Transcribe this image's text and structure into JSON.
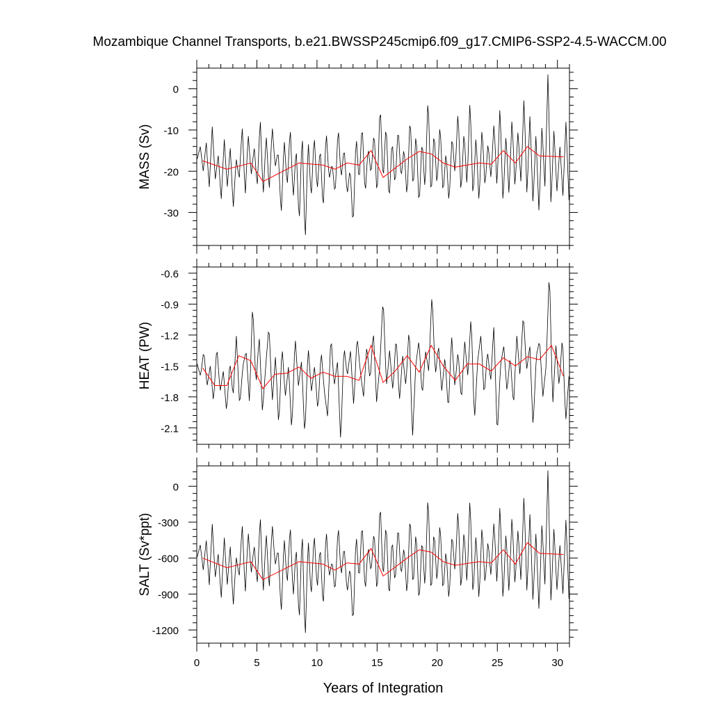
{
  "title": "Mozambique Channel Transports, b.e21.BWSSP245cmip6.f09_g17.CMIP6-SSP2-4.5-WACCM.00",
  "xlabel": "Years of Integration",
  "colors": {
    "monthly": "#000000",
    "annual": "#ff0000",
    "axes": "#000000"
  },
  "chart_data": [
    {
      "type": "line",
      "ylabel": "MASS (Sv)",
      "xlim": [
        0,
        31
      ],
      "ylim": [
        -38,
        5
      ],
      "xticks": [
        0,
        5,
        10,
        15,
        20,
        25,
        30
      ],
      "yticks": [
        0,
        -10,
        -20,
        -30
      ],
      "ytick_labels": [
        "0",
        "-10",
        "-20",
        "-30"
      ],
      "annual_x": [
        0.5,
        2.5,
        4.5,
        5.5,
        8.5,
        10.5,
        11.5,
        12.5,
        13.5,
        14.5,
        15.5,
        17.5,
        18.5,
        19.5,
        20.5,
        21.5,
        23.5,
        24.5,
        25.5,
        26.5,
        27.5,
        28.5,
        30.5
      ],
      "annual_y": [
        -17.5,
        -19.5,
        -18,
        -22.5,
        -18,
        -18.5,
        -19.5,
        -18,
        -18.5,
        -15,
        -21.5,
        -17,
        -15.2,
        -15.8,
        -18,
        -19,
        -18,
        -18.3,
        -15,
        -18,
        -14,
        -16.3,
        -16.5
      ],
      "monthly_anchors_y": [
        -17,
        -14,
        -20,
        -13,
        -24,
        -9,
        -22,
        -16,
        -27,
        -12,
        -24,
        -14,
        -29,
        -17,
        -22,
        -9,
        -26,
        -11,
        -21,
        -14,
        -24,
        -7,
        -26,
        -11,
        -25,
        -9,
        -19,
        -15,
        -31,
        -12,
        -24,
        -9,
        -27,
        -14,
        -33,
        -10,
        -38,
        -12,
        -27,
        -11,
        -25,
        -14,
        -30,
        -10,
        -22,
        -18,
        -26,
        -9,
        -22,
        -14,
        -26,
        -19,
        -34,
        -11,
        -23,
        -8,
        -26,
        -14,
        -21,
        -10,
        -27,
        -3,
        -23,
        -8,
        -28,
        -12,
        -24,
        -9,
        -22,
        -14,
        -27,
        -6,
        -25,
        -10,
        -29,
        -12,
        -25,
        -1,
        -27,
        -10,
        -24,
        -8,
        -26,
        -15,
        -28,
        -11,
        -21,
        -5,
        -26,
        -10,
        -24,
        -2,
        -27,
        -11,
        -28,
        -9,
        -24,
        -13,
        -22,
        -8,
        -24,
        -4,
        -28,
        -11,
        -26,
        -7,
        -24,
        -10,
        -23,
        -2,
        -26,
        -6,
        -28,
        -11,
        -30,
        -9,
        -24,
        4,
        -28,
        -10,
        -25,
        -14,
        -26,
        -8,
        -27
      ]
    },
    {
      "type": "line",
      "ylabel": "HEAT (PW)",
      "xlim": [
        0,
        31
      ],
      "ylim": [
        -2.26,
        -0.54
      ],
      "xticks": [
        0,
        5,
        10,
        15,
        20,
        25,
        30
      ],
      "yticks": [
        -0.6,
        -0.9,
        -1.2,
        -1.5,
        -1.8,
        -2.1
      ],
      "ytick_labels": [
        "-0.6",
        "-0.9",
        "-1.2",
        "-1.5",
        "-1.8",
        "-2.1"
      ],
      "annual_x": [
        0.5,
        1.5,
        2.5,
        3.5,
        4.5,
        5.5,
        6.5,
        7.5,
        8.5,
        9.5,
        10.5,
        11.5,
        12.5,
        13.5,
        14.5,
        15.5,
        16.5,
        17.5,
        18.5,
        19.5,
        20.5,
        21.5,
        22.5,
        23.5,
        24.5,
        25.5,
        26.5,
        27.5,
        28.5,
        29.5,
        30.5
      ],
      "annual_y": [
        -1.52,
        -1.69,
        -1.69,
        -1.4,
        -1.45,
        -1.72,
        -1.58,
        -1.57,
        -1.51,
        -1.62,
        -1.56,
        -1.6,
        -1.6,
        -1.64,
        -1.3,
        -1.66,
        -1.55,
        -1.4,
        -1.56,
        -1.3,
        -1.5,
        -1.64,
        -1.48,
        -1.48,
        -1.55,
        -1.42,
        -1.5,
        -1.41,
        -1.44,
        -1.3,
        -1.6
      ],
      "monthly_anchors_y": [
        -1.48,
        -1.6,
        -1.35,
        -1.7,
        -1.5,
        -1.85,
        -1.3,
        -1.75,
        -1.55,
        -1.95,
        -1.45,
        -1.8,
        -1.2,
        -1.9,
        -1.5,
        -1.35,
        -1.85,
        -0.88,
        -1.7,
        -1.2,
        -1.95,
        -1.5,
        -1.1,
        -1.85,
        -1.4,
        -2.1,
        -1.3,
        -1.8,
        -1.5,
        -2.15,
        -1.2,
        -1.7,
        -1.45,
        -2.2,
        -1.3,
        -1.75,
        -1.5,
        -1.95,
        -1.35,
        -1.75,
        -2.0,
        -1.2,
        -1.7,
        -1.45,
        -2.24,
        -1.3,
        -1.6,
        -1.35,
        -1.9,
        -1.2,
        -1.55,
        -1.8,
        -1.3,
        -1.65,
        -1.15,
        -1.85,
        -1.5,
        -0.82,
        -1.7,
        -1.35,
        -1.75,
        -1.2,
        -1.85,
        -1.4,
        -1.7,
        -1.1,
        -2.22,
        -1.5,
        -1.25,
        -1.8,
        -1.35,
        -1.55,
        -0.78,
        -1.6,
        -1.3,
        -1.75,
        -1.4,
        -1.95,
        -1.2,
        -1.7,
        -1.35,
        -1.85,
        -1.25,
        -1.6,
        -1.0,
        -2.05,
        -1.45,
        -1.2,
        -1.8,
        -1.35,
        -1.65,
        -1.1,
        -2.2,
        -1.5,
        -1.3,
        -1.75,
        -1.4,
        -1.9,
        -1.2,
        -1.6,
        -0.98,
        -1.55,
        -1.3,
        -2.1,
        -1.4,
        -1.25,
        -1.8,
        -1.5,
        -0.55,
        -1.9,
        -1.3,
        -1.7,
        -1.2,
        -2.05,
        -1.6
      ]
    },
    {
      "type": "line",
      "ylabel": "SALT (Sv*ppt)",
      "xlim": [
        0,
        31
      ],
      "ylim": [
        -1310,
        170
      ],
      "xticks": [
        0,
        5,
        10,
        15,
        20,
        25,
        30
      ],
      "xtick_labels": [
        "0",
        "5",
        "10",
        "15",
        "20",
        "25",
        "30"
      ],
      "yticks": [
        0,
        -300,
        -600,
        -900,
        -1200
      ],
      "ytick_labels": [
        "0",
        "-300",
        "-600",
        "-900",
        "-1200"
      ],
      "annual_x": [
        0.5,
        2.5,
        4.5,
        5.5,
        8.5,
        10.5,
        11.5,
        12.5,
        13.5,
        14.5,
        15.5,
        17.5,
        18.5,
        19.5,
        20.5,
        21.5,
        23.5,
        24.5,
        25.5,
        26.5,
        27.5,
        28.5,
        30.5
      ],
      "annual_y": [
        -600,
        -680,
        -630,
        -780,
        -630,
        -650,
        -700,
        -640,
        -650,
        -520,
        -750,
        -600,
        -530,
        -550,
        -630,
        -660,
        -630,
        -640,
        -530,
        -650,
        -470,
        -560,
        -570
      ],
      "monthly_anchors_y": [
        -590,
        -490,
        -700,
        -450,
        -830,
        -310,
        -760,
        -560,
        -940,
        -420,
        -830,
        -490,
        -1000,
        -590,
        -760,
        -310,
        -900,
        -380,
        -730,
        -490,
        -830,
        -240,
        -900,
        -380,
        -870,
        -310,
        -660,
        -520,
        -1080,
        -420,
        -830,
        -310,
        -940,
        -490,
        -1150,
        -350,
        -1310,
        -420,
        -940,
        -380,
        -870,
        -490,
        -1040,
        -350,
        -760,
        -620,
        -900,
        -310,
        -760,
        -490,
        -900,
        -660,
        -1180,
        -380,
        -800,
        -280,
        -900,
        -490,
        -730,
        -350,
        -940,
        -100,
        -800,
        -280,
        -970,
        -420,
        -830,
        -310,
        -760,
        -490,
        -940,
        -210,
        -870,
        -350,
        -1000,
        -420,
        -870,
        -30,
        -940,
        -350,
        -830,
        -280,
        -900,
        -520,
        -970,
        -380,
        -730,
        -170,
        -900,
        -350,
        -830,
        -70,
        -940,
        -380,
        -970,
        -310,
        -830,
        -450,
        -760,
        -280,
        -830,
        -140,
        -970,
        -380,
        -900,
        -240,
        -830,
        -350,
        -800,
        -70,
        -900,
        -210,
        -970,
        -380,
        -1040,
        -310,
        -830,
        150,
        -970,
        -350,
        -870,
        -490,
        -900,
        -280,
        -940
      ]
    }
  ]
}
